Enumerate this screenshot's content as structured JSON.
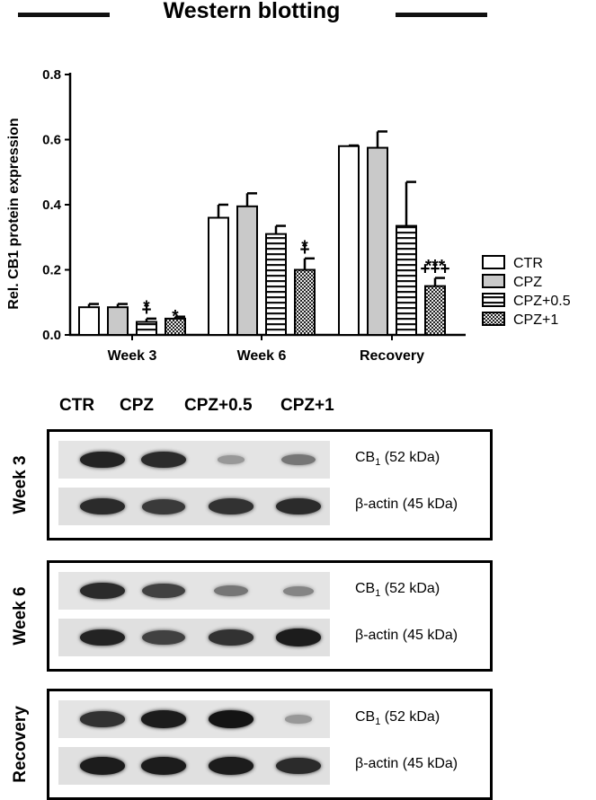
{
  "header": {
    "title": "Western blotting"
  },
  "chart_data": {
    "type": "bar",
    "ylabel": "Rel. CB1 protein expression",
    "xlabel": "",
    "ylim": [
      0,
      0.8
    ],
    "yticks": [
      "0.0",
      "0.2",
      "0.4",
      "0.6",
      "0.8"
    ],
    "categories": [
      "Week 3",
      "Week 6",
      "Recovery"
    ],
    "series": [
      {
        "name": "CTR",
        "pattern": "white",
        "values": [
          0.085,
          0.36,
          0.58
        ],
        "errors": [
          0.01,
          0.04,
          0.002
        ]
      },
      {
        "name": "CPZ",
        "pattern": "gray",
        "values": [
          0.085,
          0.395,
          0.575
        ],
        "errors": [
          0.01,
          0.04,
          0.05
        ]
      },
      {
        "name": "CPZ+0.5",
        "pattern": "horizontal",
        "values": [
          0.04,
          0.31,
          0.335
        ],
        "errors": [
          0.01,
          0.025,
          0.135
        ]
      },
      {
        "name": "CPZ+1",
        "pattern": "checker",
        "values": [
          0.05,
          0.2,
          0.15
        ],
        "errors": [
          0.006,
          0.035,
          0.025
        ]
      }
    ],
    "annotations": [
      {
        "category": "Week 3",
        "series": "CPZ+0.5",
        "lines": [
          "*",
          "+"
        ]
      },
      {
        "category": "Week 3",
        "series": "CPZ+1",
        "lines": [
          "*"
        ]
      },
      {
        "category": "Week 6",
        "series": "CPZ+1",
        "lines": [
          "*",
          "+"
        ]
      },
      {
        "category": "Recovery",
        "series": "CPZ+1",
        "lines": [
          "***",
          "+++"
        ]
      }
    ],
    "legend_position": "right"
  },
  "blots": {
    "lanes": [
      "CTR",
      "CPZ",
      "CPZ+0.5",
      "CPZ+1"
    ],
    "cb1_label": {
      "main": "CB",
      "sub": "1",
      "rest": " (52 kDa)"
    },
    "actin_label": "β-actin (45 kDa)",
    "panels": [
      {
        "label": "Week 3",
        "cb1": [
          0.9,
          0.85,
          0.12,
          0.35
        ],
        "actin": [
          0.85,
          0.75,
          0.8,
          0.85
        ]
      },
      {
        "label": "Week 6",
        "cb1": [
          0.85,
          0.7,
          0.35,
          0.25
        ],
        "actin": [
          0.9,
          0.7,
          0.8,
          0.95
        ]
      },
      {
        "label": "Recovery",
        "cb1": [
          0.8,
          0.95,
          1.0,
          0.12
        ],
        "actin": [
          0.95,
          0.95,
          0.95,
          0.85
        ]
      }
    ]
  }
}
